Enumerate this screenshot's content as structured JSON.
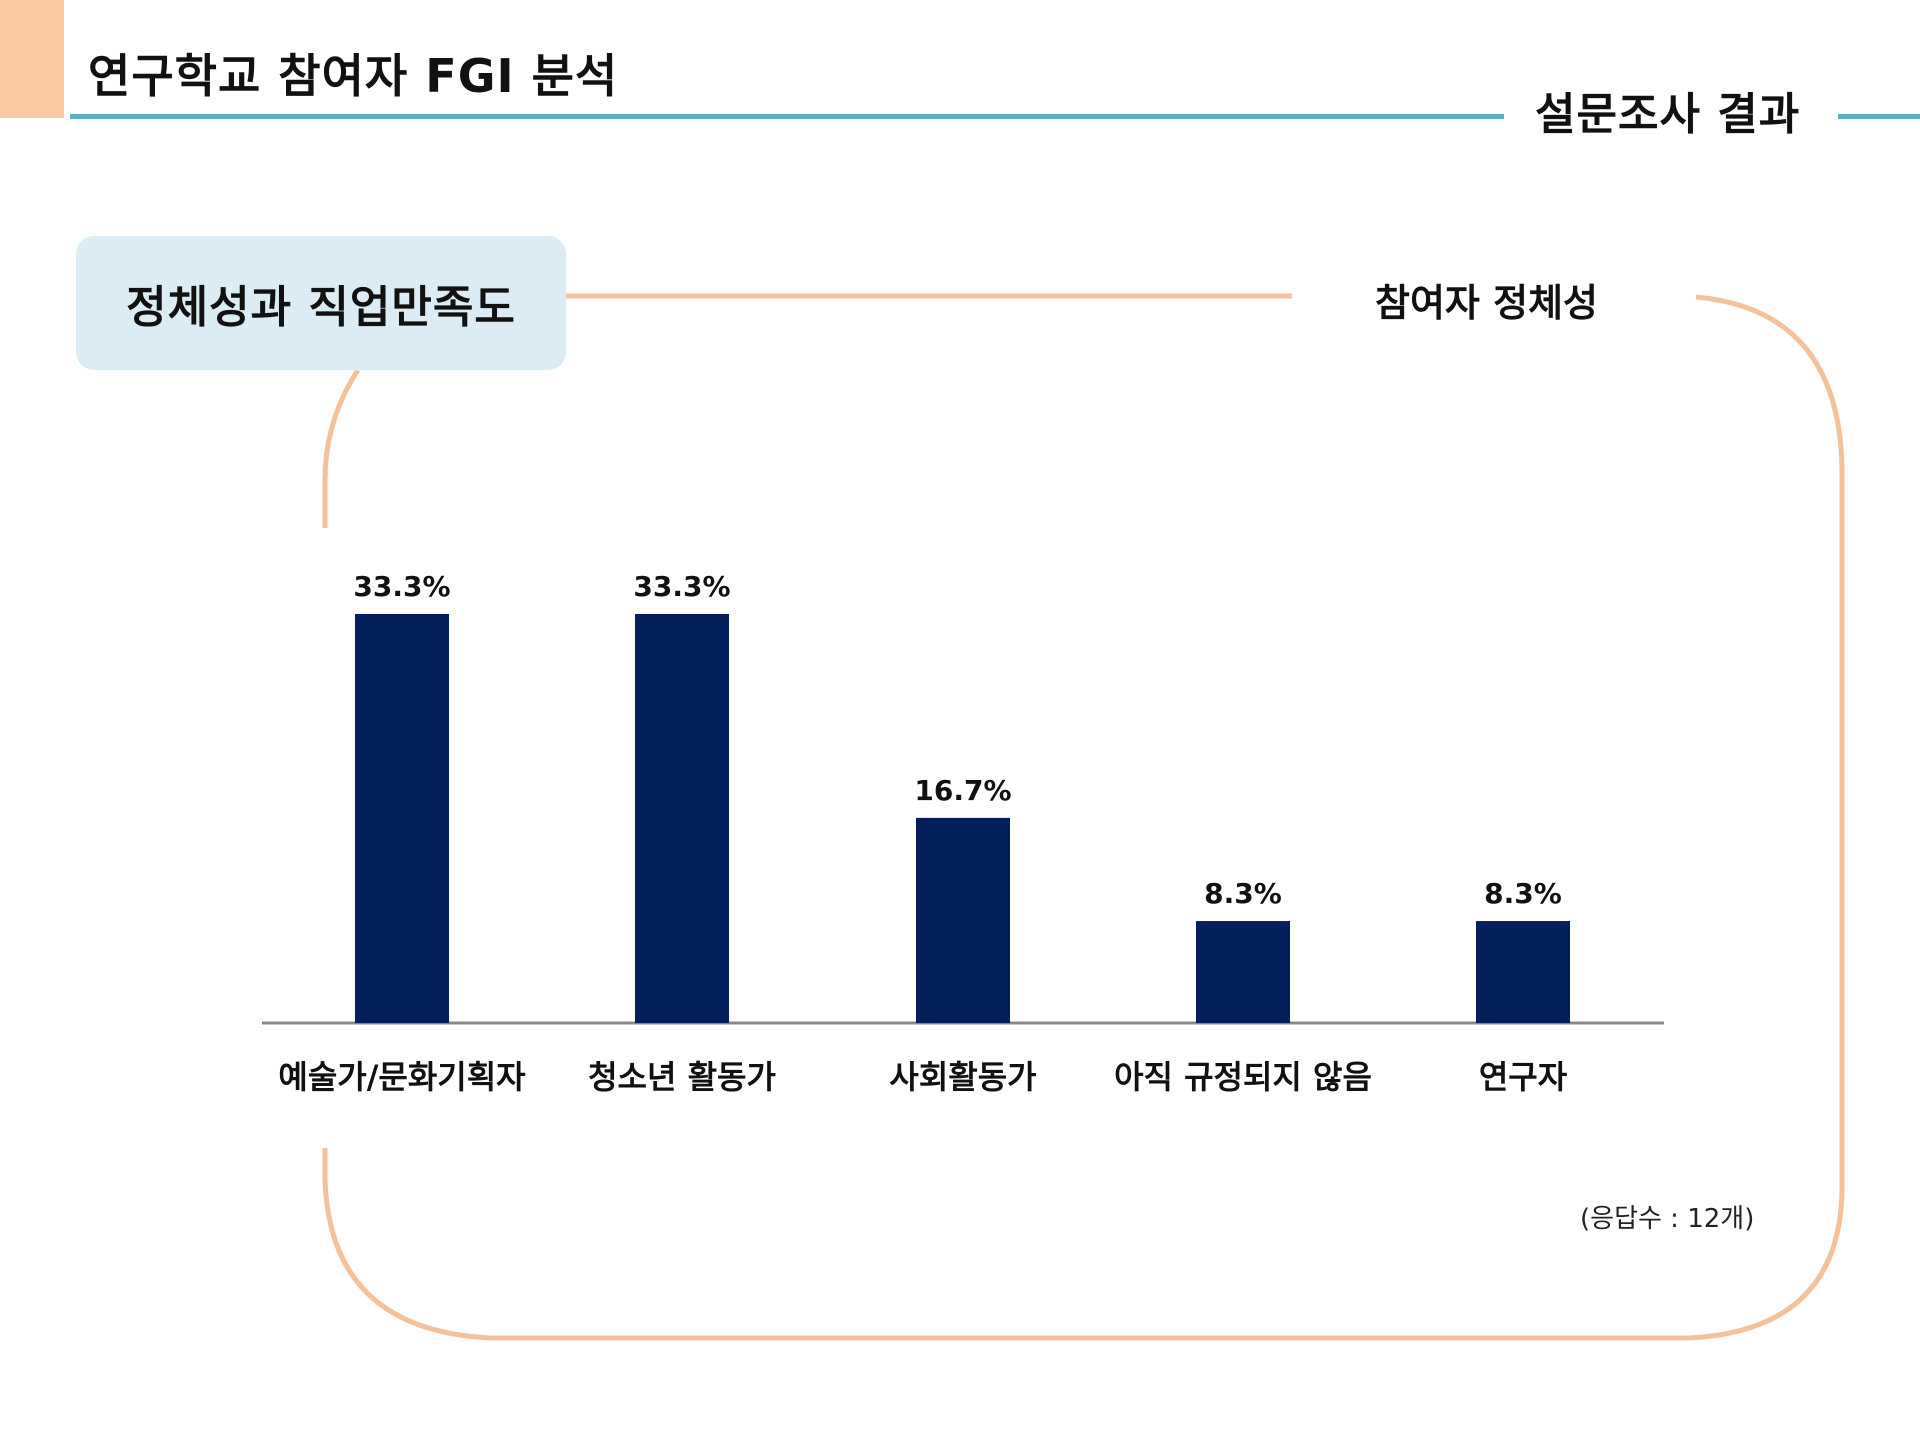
{
  "header": {
    "title": "연구학교 참여자 FGI 분석",
    "section": "설문조사 결과"
  },
  "tag": {
    "label": "정체성과 직업만족도"
  },
  "panel": {
    "title": "참여자 정체성",
    "footnote": "(응답수 : 12개)"
  },
  "colors": {
    "accent": "#f8c9a2",
    "frame": "#f3c29b",
    "header_line": "#5aafc7",
    "tag_bg": "#dbecf4",
    "bar": "#021f5c",
    "axis": "#888888"
  },
  "chart_data": {
    "type": "bar",
    "categories": [
      "예술가/문화기획자",
      "청소년 활동가",
      "사회활동가",
      "아직 규정되지 않음",
      "연구자"
    ],
    "values": [
      33.3,
      33.3,
      16.7,
      8.3,
      8.3
    ],
    "data_labels": [
      "33.3%",
      "33.3%",
      "16.7%",
      "8.3%",
      "8.3%"
    ],
    "unit": "%",
    "ylim": [
      0,
      40
    ],
    "grid": false,
    "legend": "none"
  }
}
